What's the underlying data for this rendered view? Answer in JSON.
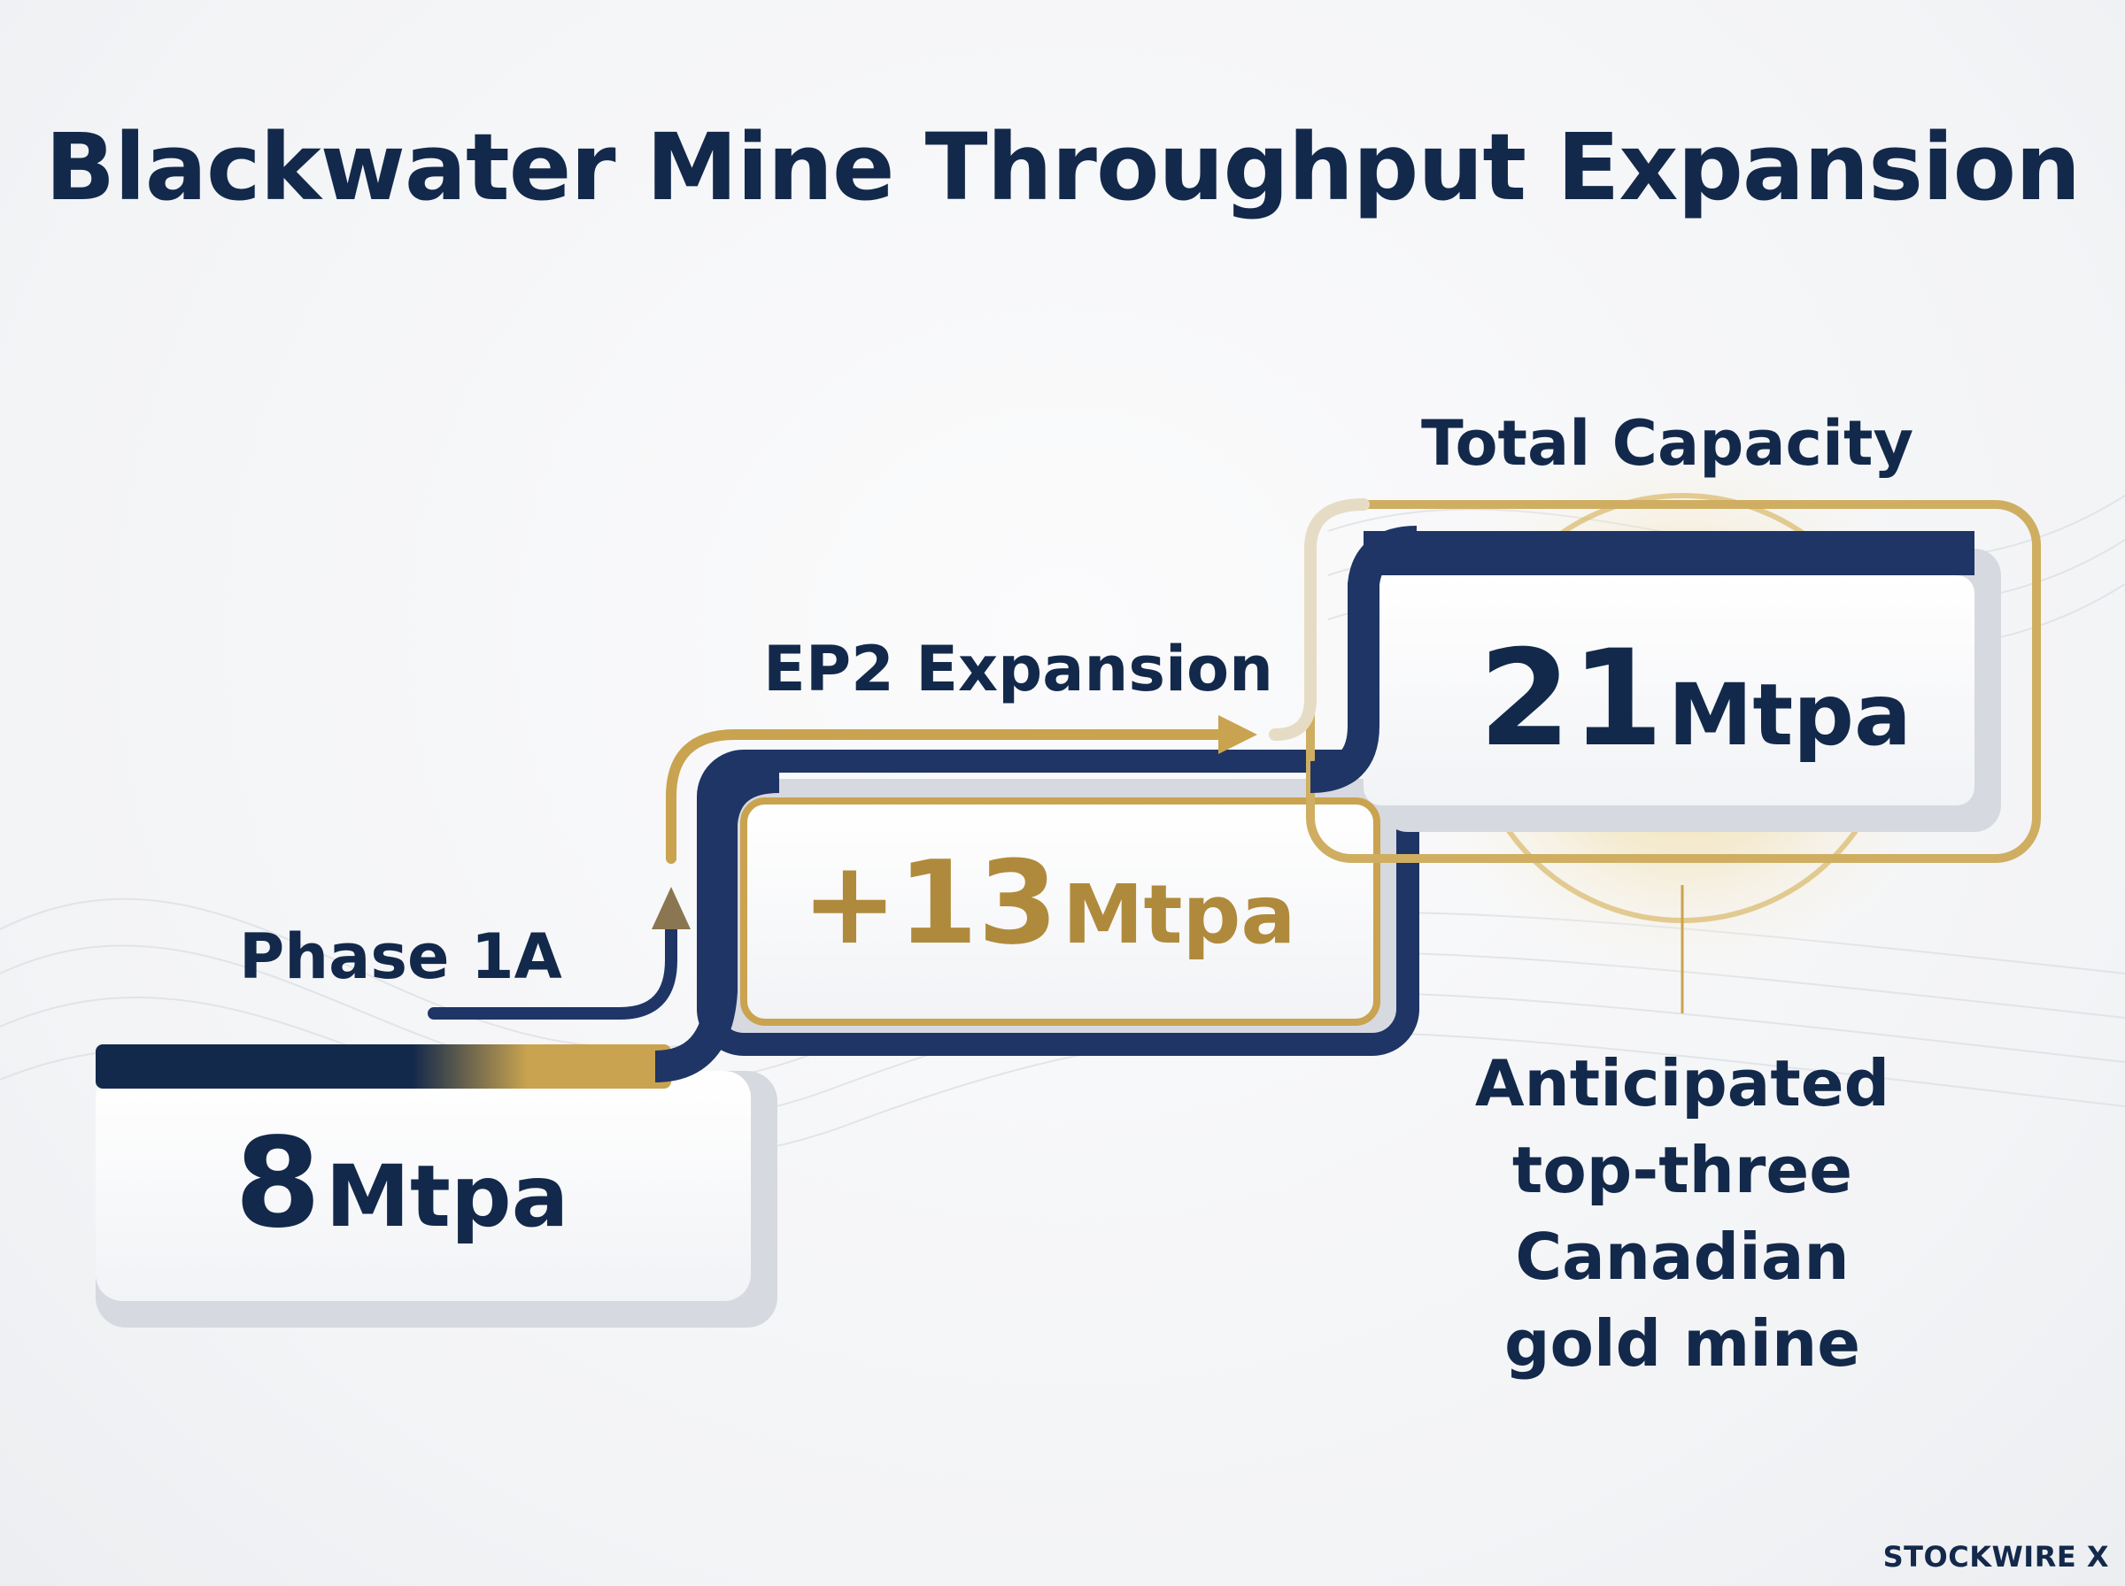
{
  "title": "Blackwater Mine Throughput Expansion",
  "steps": [
    {
      "label": "Phase 1A",
      "number": "8",
      "unit": "Mtpa"
    },
    {
      "label": "EP2 Expansion",
      "number": "+13",
      "unit": "Mtpa"
    },
    {
      "label": "Total Capacity",
      "number": "21",
      "unit": "Mtpa"
    }
  ],
  "callout": [
    "Anticipated",
    "top-three",
    "Canadian",
    "gold mine"
  ],
  "watermark": "STOCKWIRE X",
  "colors": {
    "navy": "#13294b",
    "gold": "#c9a34f",
    "gray": "#cfd3db"
  }
}
